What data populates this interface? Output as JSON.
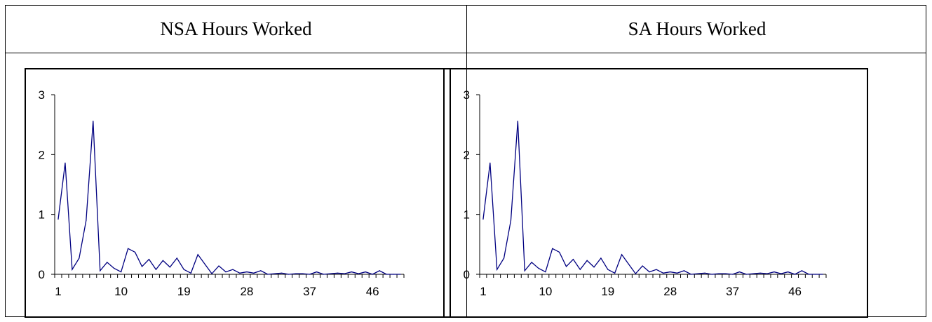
{
  "table": {
    "headers": [
      "NSA Hours Worked",
      "SA Hours Worked"
    ]
  },
  "colors": {
    "line": "#000080",
    "axis": "#000000"
  },
  "chart_data": [
    {
      "type": "line",
      "title": "",
      "xlabel": "",
      "ylabel": "",
      "ylim": [
        0,
        3
      ],
      "y_ticks": [
        0,
        1,
        2,
        3
      ],
      "x_tick_labels": [
        "1",
        "10",
        "19",
        "28",
        "37",
        "46"
      ],
      "grid": false,
      "legend": "none",
      "x": [
        1,
        2,
        3,
        4,
        5,
        6,
        7,
        8,
        9,
        10,
        11,
        12,
        13,
        14,
        15,
        16,
        17,
        18,
        19,
        20,
        21,
        22,
        23,
        24,
        25,
        26,
        27,
        28,
        29,
        30,
        31,
        32,
        33,
        34,
        35,
        36,
        37,
        38,
        39,
        40,
        41,
        42,
        43,
        44,
        45,
        46,
        47,
        48,
        49,
        50
      ],
      "series": [
        {
          "values": [
            0.92,
            1.86,
            0.08,
            0.27,
            0.9,
            2.56,
            0.06,
            0.2,
            0.1,
            0.04,
            0.43,
            0.37,
            0.13,
            0.25,
            0.08,
            0.23,
            0.12,
            0.27,
            0.08,
            0.02,
            0.33,
            0.17,
            0.01,
            0.14,
            0.04,
            0.08,
            0.02,
            0.04,
            0.02,
            0.06,
            0.0,
            0.01,
            0.02,
            0.0,
            0.01,
            0.01,
            0.0,
            0.04,
            0.0,
            0.01,
            0.02,
            0.01,
            0.04,
            0.01,
            0.04,
            0.0,
            0.06,
            0.0,
            0.0,
            0.0
          ]
        }
      ]
    },
    {
      "type": "line",
      "title": "",
      "xlabel": "",
      "ylabel": "",
      "ylim": [
        0,
        3
      ],
      "y_ticks": [
        0,
        1,
        2,
        3
      ],
      "x_tick_labels": [
        "1",
        "10",
        "19",
        "28",
        "37",
        "46"
      ],
      "grid": false,
      "legend": "none",
      "x": [
        1,
        2,
        3,
        4,
        5,
        6,
        7,
        8,
        9,
        10,
        11,
        12,
        13,
        14,
        15,
        16,
        17,
        18,
        19,
        20,
        21,
        22,
        23,
        24,
        25,
        26,
        27,
        28,
        29,
        30,
        31,
        32,
        33,
        34,
        35,
        36,
        37,
        38,
        39,
        40,
        41,
        42,
        43,
        44,
        45,
        46,
        47,
        48,
        49,
        50
      ],
      "series": [
        {
          "values": [
            0.92,
            1.86,
            0.08,
            0.27,
            0.9,
            2.56,
            0.06,
            0.2,
            0.1,
            0.04,
            0.43,
            0.37,
            0.13,
            0.25,
            0.08,
            0.23,
            0.12,
            0.27,
            0.08,
            0.02,
            0.33,
            0.17,
            0.01,
            0.14,
            0.04,
            0.08,
            0.02,
            0.04,
            0.02,
            0.06,
            0.0,
            0.01,
            0.02,
            0.0,
            0.01,
            0.01,
            0.0,
            0.04,
            0.0,
            0.01,
            0.02,
            0.01,
            0.04,
            0.01,
            0.04,
            0.0,
            0.06,
            0.0,
            0.0,
            0.0
          ]
        }
      ]
    }
  ]
}
